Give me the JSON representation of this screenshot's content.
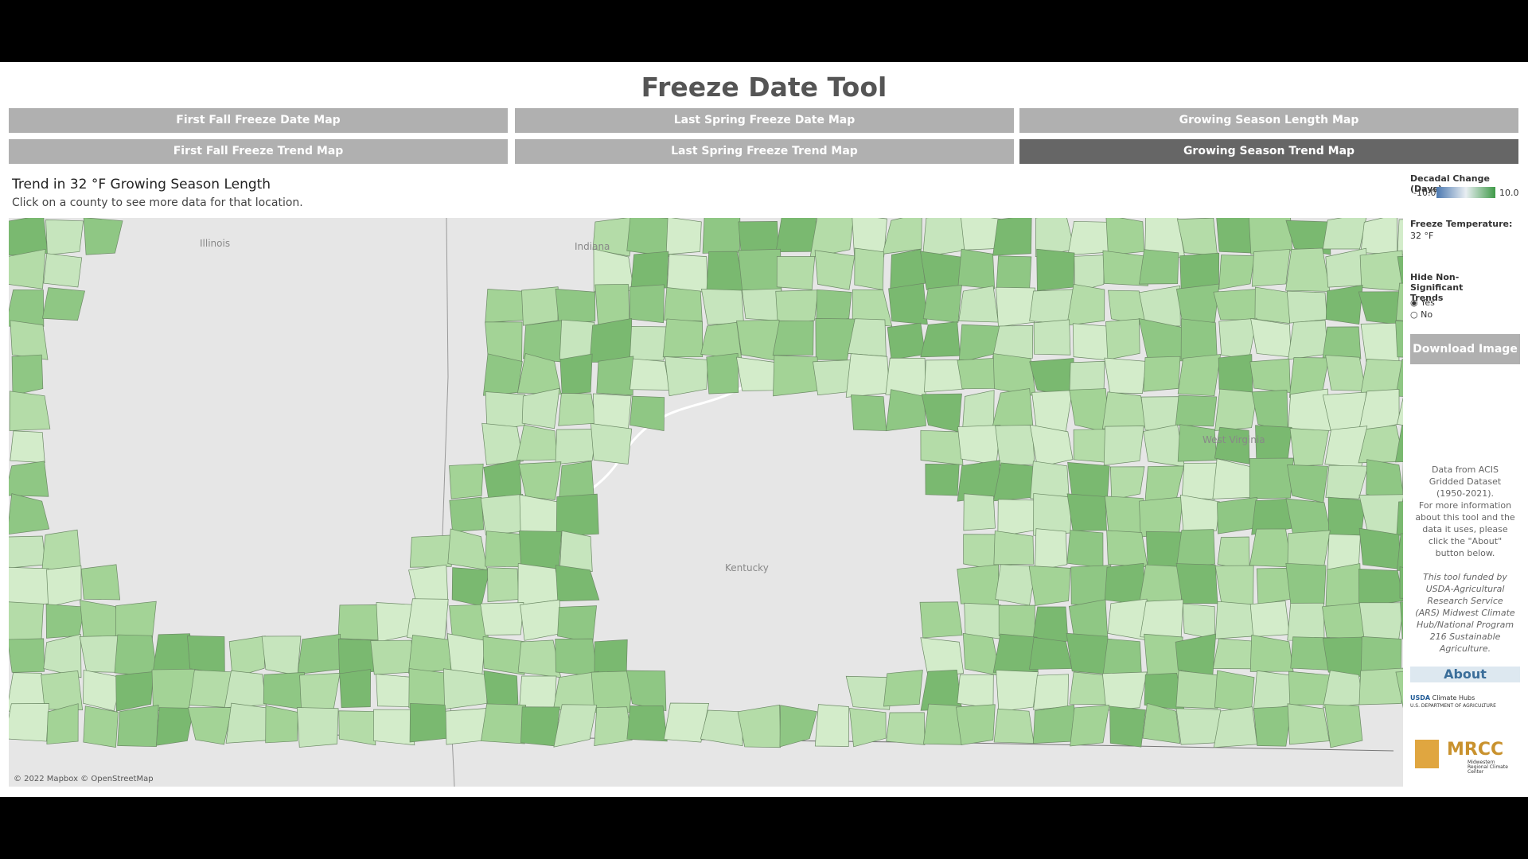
{
  "header": {
    "title": "Freeze Date Tool"
  },
  "nav": {
    "buttons": [
      "First Fall Freeze Date Map",
      "Last Spring Freeze Date Map",
      "Growing Season Length Map",
      "First Fall Freeze Trend Map",
      "Last Spring Freeze Trend Map",
      "Growing Season Trend Map"
    ]
  },
  "map": {
    "title": "Trend in 32 °F Growing Season Length",
    "subtitle": "Click on a county to see more data for that location.",
    "labels": [
      "Illinois",
      "Indiana",
      "Kentucky",
      "West Virginia"
    ],
    "attribution": "© 2022 Mapbox © OpenStreetMap"
  },
  "sidebar": {
    "legend_title": "Decadal Change (Days)",
    "legend_min": "-10.0",
    "legend_max": "10.0",
    "freeze_label": "Freeze Temperature:",
    "freeze_value": "32 °F",
    "filter_title": "Hide Non-Significant Trends",
    "filter_options": [
      "Yes",
      "No"
    ],
    "download": "Download Image",
    "info": [
      "Data from ACIS Gridded Dataset (1950-2021).",
      "For more information about this tool and the data it uses, please click the \"About\" button below.",
      "This tool funded by USDA-Agricultural Research Service (ARS) Midwest Climate Hub/National Program 216 Sustainable Agriculture."
    ],
    "about": "About",
    "logos": [
      "USDA",
      "Climate Hubs",
      "U.S. DEPARTMENT OF AGRICULTURE",
      "MRCC",
      "Midwestern Regional Climate Center"
    ]
  }
}
